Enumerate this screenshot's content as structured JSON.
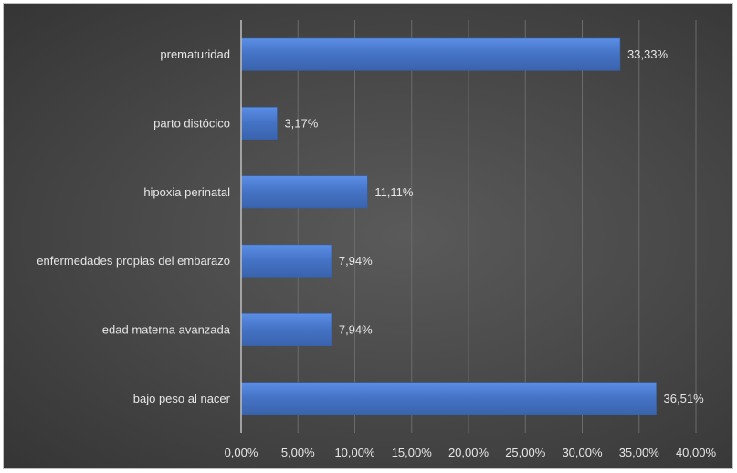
{
  "chart_data": {
    "type": "bar",
    "orientation": "horizontal",
    "title": "",
    "xlabel": "",
    "ylabel": "",
    "categories": [
      "bajo peso al nacer",
      "edad materna avanzada",
      "enfermedades propias del embarazo",
      "hipoxia perinatal",
      "parto distócico",
      "prematuridad"
    ],
    "values": [
      36.51,
      7.94,
      7.94,
      11.11,
      3.17,
      33.33
    ],
    "data_labels": [
      "36,51%",
      "7,94%",
      "7,94%",
      "11,11%",
      "3,17%",
      "33,33%"
    ],
    "xlim": [
      0,
      40
    ],
    "x_ticks": [
      0,
      5,
      10,
      15,
      20,
      25,
      30,
      35,
      40
    ],
    "x_tick_labels": [
      "0,00%",
      "5,00%",
      "10,00%",
      "15,00%",
      "20,00%",
      "25,00%",
      "30,00%",
      "35,00%",
      "40,00%"
    ],
    "grid": true,
    "legend": "none"
  },
  "colors": {
    "bar": "#4472c4",
    "bar_highlight": "#5a8be0",
    "gridline": "#6b6b6b",
    "axis_line": "#bfbfbf",
    "text": "#e6e6e6"
  }
}
